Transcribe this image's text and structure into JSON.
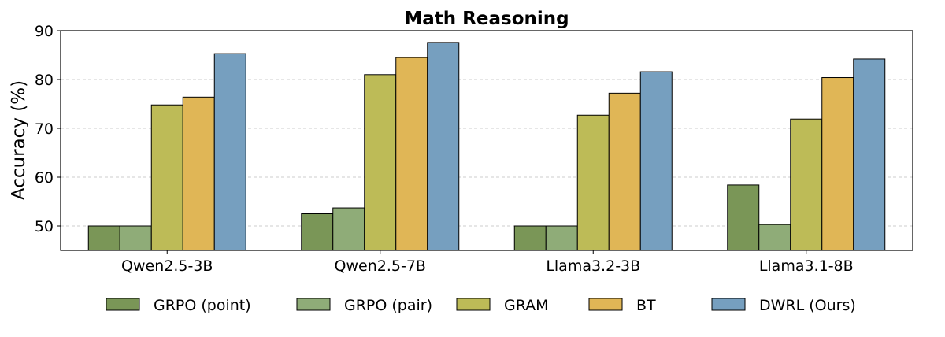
{
  "chart_data": {
    "type": "bar",
    "title": "Math Reasoning",
    "xlabel": "",
    "ylabel": "Accuracy (%)",
    "ylim": [
      45,
      90
    ],
    "yticks": [
      50,
      60,
      70,
      80,
      90
    ],
    "grid": "y dashed",
    "legend_position": "bottom",
    "categories": [
      "Qwen2.5-3B",
      "Qwen2.5-7B",
      "Llama3.2-3B",
      "Llama3.1-8B"
    ],
    "series": [
      {
        "name": "GRPO (point)",
        "color": "#7a9657",
        "values": [
          50.0,
          52.5,
          50.0,
          58.4
        ]
      },
      {
        "name": "GRPO (pair)",
        "color": "#8fac78",
        "values": [
          50.0,
          53.7,
          50.0,
          50.3
        ]
      },
      {
        "name": "GRAM",
        "color": "#bdbb57",
        "values": [
          74.8,
          81.0,
          72.7,
          71.9
        ]
      },
      {
        "name": "BT",
        "color": "#e0b656",
        "values": [
          76.4,
          84.5,
          77.2,
          80.4
        ]
      },
      {
        "name": "DWRL (Ours)",
        "color": "#769fbf",
        "values": [
          85.3,
          87.6,
          81.6,
          84.2
        ]
      }
    ]
  }
}
